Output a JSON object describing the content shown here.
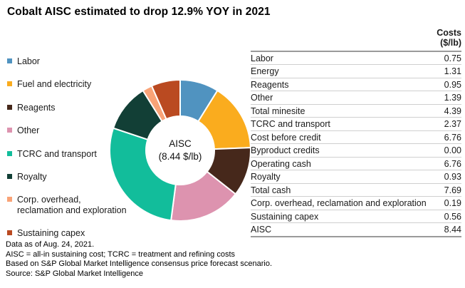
{
  "title": "Cobalt AISC estimated to drop 12.9% YOY in 2021",
  "legend": {
    "items": [
      {
        "label": "Labor",
        "color": "#5093C0"
      },
      {
        "label": "Fuel and electricity",
        "color": "#FAAC1E"
      },
      {
        "label": "Reagents",
        "color": "#46281B"
      },
      {
        "label": "Other",
        "color": "#DD93AF"
      },
      {
        "label": "TCRC and transport",
        "color": "#12BD9B"
      },
      {
        "label": "Royalty",
        "color": "#123F36"
      },
      {
        "label": "Corp. overhead,\nreclamation and exploration",
        "color": "#F9A377"
      },
      {
        "label": "Sustaining capex",
        "color": "#BA4A21"
      }
    ]
  },
  "donut": {
    "center_line1": "AISC",
    "center_line2": "(8.44 $/lb)"
  },
  "table": {
    "header": "Costs\n($/lb)",
    "rows": [
      {
        "label": "Labor",
        "value": "0.75"
      },
      {
        "label": "Energy",
        "value": "1.31"
      },
      {
        "label": "Reagents",
        "value": "0.95"
      },
      {
        "label": "Other",
        "value": "1.39"
      },
      {
        "label": "Total minesite",
        "value": "4.39"
      },
      {
        "label": "TCRC and transport",
        "value": "2.37"
      },
      {
        "label": "Cost before credit",
        "value": "6.76"
      },
      {
        "label": "Byproduct credits",
        "value": "0.00"
      },
      {
        "label": "Operating cash",
        "value": "6.76"
      },
      {
        "label": "Royalty",
        "value": "0.93"
      },
      {
        "label": "Total cash",
        "value": "7.69"
      },
      {
        "label": "Corp. overhead, reclamation and exploration",
        "value": "0.19"
      },
      {
        "label": "Sustaining capex",
        "value": "0.56"
      },
      {
        "label": "AISC",
        "value": "8.44"
      }
    ]
  },
  "footnotes": [
    "Data as of Aug. 24, 2021.",
    "AISC = all-in sustaining cost; TCRC = treatment and refining costs",
    "Based on S&P Global Market Intelligence consensus price forecast scenario.",
    "Source: S&P Global Market Intelligence"
  ],
  "chart_data": {
    "type": "pie",
    "donut": true,
    "title": "Cobalt AISC estimated to drop 12.9% YOY in 2021",
    "categories": [
      "Labor",
      "Fuel and electricity",
      "Reagents",
      "Other",
      "TCRC and transport",
      "Royalty",
      "Corp. overhead, reclamation and exploration",
      "Sustaining capex"
    ],
    "values": [
      0.75,
      1.31,
      0.95,
      1.39,
      2.37,
      0.93,
      0.19,
      0.56
    ],
    "colors": [
      "#5093C0",
      "#FAAC1E",
      "#46281B",
      "#DD93AF",
      "#12BD9B",
      "#123F36",
      "#F9A377",
      "#BA4A21"
    ],
    "center_label": "AISC (8.44 $/lb)",
    "units": "$/lb",
    "start_angle_deg": 0,
    "direction": "clockwise",
    "legend_position": "left"
  }
}
